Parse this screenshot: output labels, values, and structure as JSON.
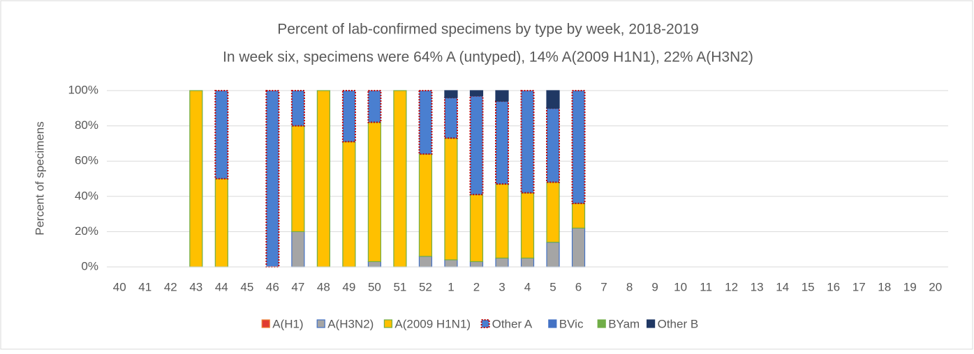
{
  "chart_data": {
    "type": "stacked_bar",
    "title": "Percent of lab-confirmed specimens by type by week, 2018-2019",
    "subtitle": "In week six, specimens were 64% A (untyped), 14% A(2009 H1N1), 22% A(H3N2)",
    "y_label": "Percent of specimens",
    "categories": [
      "40",
      "41",
      "42",
      "43",
      "44",
      "45",
      "46",
      "47",
      "48",
      "49",
      "50",
      "51",
      "52",
      "1",
      "2",
      "3",
      "4",
      "5",
      "6",
      "7",
      "8",
      "9",
      "10",
      "11",
      "12",
      "13",
      "14",
      "15",
      "16",
      "17",
      "18",
      "19",
      "20"
    ],
    "series": [
      {
        "name": "A(H1)",
        "color": "#e03c31",
        "border": "#ed7d31",
        "border_style": "solid",
        "values": [
          0,
          0,
          0,
          0,
          0,
          0,
          0,
          0,
          0,
          0,
          0,
          0,
          0,
          0,
          0,
          0,
          0,
          0,
          0,
          null,
          null,
          null,
          null,
          null,
          null,
          null,
          null,
          null,
          null,
          null,
          null,
          null,
          null
        ]
      },
      {
        "name": "A(H3N2)",
        "color": "#a5a5a5",
        "border": "#4472c4",
        "border_style": "solid",
        "values": [
          0,
          0,
          0,
          0,
          0,
          0,
          0,
          20,
          0,
          0,
          3,
          0,
          6,
          4,
          3,
          5,
          5,
          14,
          22,
          null,
          null,
          null,
          null,
          null,
          null,
          null,
          null,
          null,
          null,
          null,
          null,
          null,
          null
        ]
      },
      {
        "name": "A(2009 H1N1)",
        "color": "#ffc000",
        "border": "#70ad47",
        "border_style": "solid",
        "values": [
          0,
          0,
          0,
          100,
          50,
          0,
          0,
          60,
          100,
          71,
          79,
          100,
          58,
          69,
          38,
          42,
          37,
          34,
          14,
          null,
          null,
          null,
          null,
          null,
          null,
          null,
          null,
          null,
          null,
          null,
          null,
          null,
          null
        ]
      },
      {
        "name": "Other A",
        "color": "#4a7fd0",
        "border": "#c00000",
        "border_style": "dotted",
        "values": [
          0,
          0,
          0,
          0,
          50,
          0,
          100,
          20,
          0,
          29,
          18,
          0,
          36,
          23,
          56,
          47,
          58,
          42,
          64,
          null,
          null,
          null,
          null,
          null,
          null,
          null,
          null,
          null,
          null,
          null,
          null,
          null,
          null
        ]
      },
      {
        "name": "BVic",
        "color": "#4472c4",
        "border": "#4472c4",
        "border_style": "solid",
        "values": [
          0,
          0,
          0,
          0,
          0,
          0,
          0,
          0,
          0,
          0,
          0,
          0,
          0,
          0,
          0,
          0,
          0,
          0,
          0,
          null,
          null,
          null,
          null,
          null,
          null,
          null,
          null,
          null,
          null,
          null,
          null,
          null,
          null
        ]
      },
      {
        "name": "BYam",
        "color": "#70ad47",
        "border": "#70ad47",
        "border_style": "solid",
        "values": [
          0,
          0,
          0,
          0,
          0,
          0,
          0,
          0,
          0,
          0,
          0,
          0,
          0,
          0,
          0,
          0,
          0,
          0,
          0,
          null,
          null,
          null,
          null,
          null,
          null,
          null,
          null,
          null,
          null,
          null,
          null,
          null,
          null
        ]
      },
      {
        "name": "Other B",
        "color": "#203864",
        "border": "#203864",
        "border_style": "solid",
        "values": [
          0,
          0,
          0,
          0,
          0,
          0,
          0,
          0,
          0,
          0,
          0,
          0,
          0,
          4,
          3,
          6,
          0,
          10,
          0,
          null,
          null,
          null,
          null,
          null,
          null,
          null,
          null,
          null,
          null,
          null,
          null,
          null,
          null
        ]
      }
    ],
    "ylim": [
      0,
      100
    ],
    "yticks": [
      {
        "value": 0,
        "label": "0%"
      },
      {
        "value": 20,
        "label": "20%"
      },
      {
        "value": 40,
        "label": "40%"
      },
      {
        "value": 60,
        "label": "60%"
      },
      {
        "value": 80,
        "label": "80%"
      },
      {
        "value": 100,
        "label": "100%"
      }
    ],
    "grid": true,
    "legend": "bottom"
  }
}
